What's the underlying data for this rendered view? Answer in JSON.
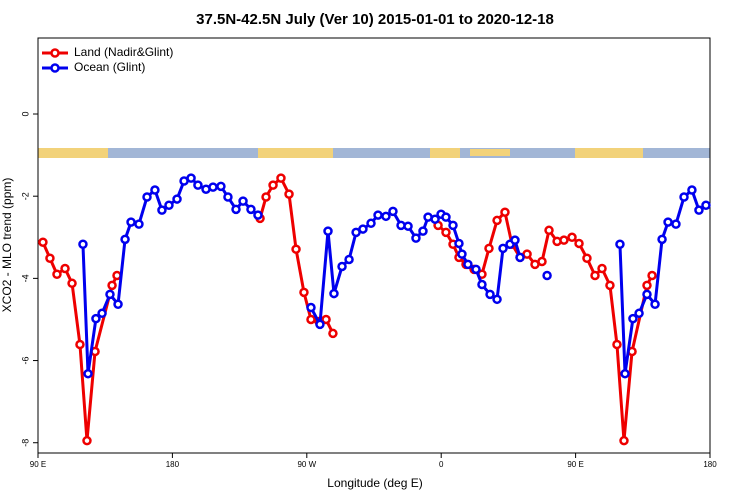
{
  "chart_data": {
    "type": "line",
    "title": "37.5N-42.5N July (Ver 10)   2015-01-01 to 2020-12-18",
    "x_label": "Longitude (deg E)",
    "y_label": "XCO2 - MLO trend (ppm)",
    "xlim": [
      90,
      540
    ],
    "xticks": [
      {
        "value": 90,
        "label": "90 E"
      },
      180,
      {
        "value": 270,
        "label": "90 W"
      },
      {
        "value": 360,
        "label": "0"
      },
      {
        "value": 450,
        "label": "90 E"
      },
      {
        "value": 540,
        "label": "180"
      }
    ],
    "ylim": [
      -8.25,
      1.85
    ],
    "yticks": [
      0,
      -2,
      -4,
      -6,
      -8
    ],
    "legend": "top-left",
    "series": [
      {
        "name": "Land (Nadir&Glint)",
        "color": "#ee0000",
        "x": [
          93.3,
          98.0,
          102.7,
          108.1,
          112.8,
          118.1,
          122.8,
          128.2,
          139.6,
          142.9,
          null,
          238.7,
          242.7,
          247.4,
          252.7,
          258.1,
          262.8,
          268.1,
          272.8,
          278.2,
          282.9,
          287.5,
          null,
          357.9,
          363.2,
          367.9,
          371.9,
          376.6,
          382.0,
          387.3,
          392.0,
          397.4,
          402.7,
          407.4,
          412.8,
          417.5,
          422.8,
          427.5,
          432.2,
          437.6,
          442.2,
          447.6,
          452.3,
          457.6,
          463.0,
          467.7,
          473.0,
          477.7,
          482.4,
          487.8,
          497.8,
          501.2
        ],
        "values": [
          -3.12,
          -3.51,
          -3.9,
          -3.76,
          -4.12,
          -5.61,
          -7.95,
          -5.78,
          -4.17,
          -3.93,
          null,
          -2.54,
          -2.02,
          -1.73,
          -1.56,
          -1.95,
          -3.29,
          -4.34,
          -5.0,
          -5.05,
          -5.0,
          -5.34,
          null,
          -2.71,
          -2.88,
          -3.17,
          -3.49,
          -3.66,
          -3.78,
          -3.9,
          -3.27,
          -2.59,
          -2.39,
          -3.17,
          -3.49,
          -3.41,
          -3.66,
          -3.59,
          -2.83,
          -3.1,
          -3.07,
          -3.0,
          -3.15,
          -3.51,
          -3.93,
          -3.76,
          -4.17,
          -5.61,
          -7.95,
          -5.78,
          -4.17,
          -3.93
        ]
      },
      {
        "name": "Ocean (Glint)",
        "color": "#0000ee",
        "x": [
          120.1,
          123.5,
          128.8,
          132.9,
          138.2,
          143.6,
          148.3,
          152.3,
          157.6,
          163.0,
          168.3,
          173.0,
          177.7,
          183.1,
          187.8,
          192.5,
          197.1,
          202.5,
          207.2,
          212.5,
          217.2,
          222.6,
          227.3,
          232.6,
          237.3,
          null,
          272.8,
          278.8,
          284.2,
          288.2,
          293.6,
          298.3,
          303.0,
          307.6,
          313.0,
          317.7,
          323.0,
          327.7,
          333.1,
          337.8,
          343.1,
          347.8,
          351.2,
          355.9,
          359.9,
          363.2,
          367.9,
          371.9,
          373.9,
          377.9,
          383.3,
          387.3,
          392.7,
          397.4,
          401.4,
          406.1,
          409.4,
          412.8,
          null,
          430.9,
          null,
          479.7,
          483.1,
          488.4,
          492.5,
          497.8,
          503.2,
          507.9,
          511.9,
          517.2,
          522.6,
          527.9,
          532.6,
          537.3
        ],
        "values": [
          -3.17,
          -6.32,
          -4.98,
          -4.85,
          -4.39,
          -4.63,
          -3.05,
          -2.63,
          -2.68,
          -2.02,
          -1.85,
          -2.34,
          -2.22,
          -2.07,
          -1.63,
          -1.56,
          -1.73,
          -1.83,
          -1.78,
          -1.76,
          -2.02,
          -2.32,
          -2.12,
          -2.32,
          -2.46,
          null,
          -4.71,
          -5.12,
          -2.85,
          -4.37,
          -3.71,
          -3.54,
          -2.88,
          -2.8,
          -2.66,
          -2.46,
          -2.49,
          -2.37,
          -2.71,
          -2.73,
          -3.02,
          -2.85,
          -2.51,
          -2.56,
          -2.44,
          -2.51,
          -2.71,
          -3.15,
          -3.41,
          -3.66,
          -3.78,
          -4.15,
          -4.39,
          -4.51,
          -3.27,
          -3.17,
          -3.07,
          -3.49,
          null,
          -3.93,
          null,
          -3.17,
          -6.32,
          -4.98,
          -4.85,
          -4.39,
          -4.63,
          -3.05,
          -2.63,
          -2.68,
          -2.02,
          -1.85,
          -2.34,
          -2.22
        ]
      }
    ]
  }
}
